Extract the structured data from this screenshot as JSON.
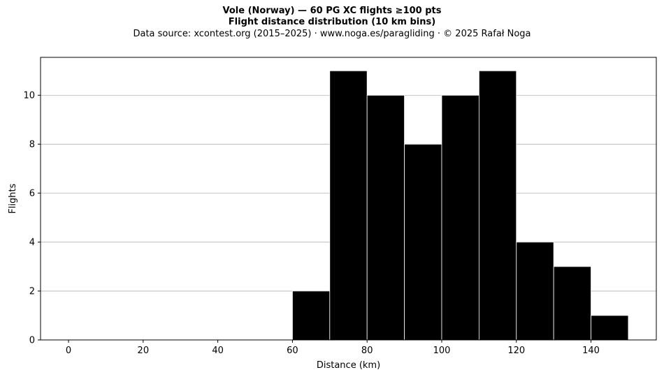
{
  "header": {
    "title": "Vole (Norway)  —  60 PG XC flights ≥100 pts",
    "subtitle": "Flight distance distribution (10 km bins)",
    "source": "Data source: xcontest.org (2015–2025)  ·  www.noga.es/paragliding  ·  © 2025 Rafał Noga"
  },
  "chart_data": {
    "type": "bar",
    "title": "Vole (Norway)  —  60 PG XC flights ≥100 pts",
    "subtitle": "Flight distance distribution (10 km bins)",
    "xlabel": "Distance (km)",
    "ylabel": "Flights",
    "bin_width": 10,
    "bins": [
      {
        "start": 60,
        "end": 70,
        "count": 2
      },
      {
        "start": 70,
        "end": 80,
        "count": 11
      },
      {
        "start": 80,
        "end": 90,
        "count": 10
      },
      {
        "start": 90,
        "end": 100,
        "count": 8
      },
      {
        "start": 100,
        "end": 110,
        "count": 10
      },
      {
        "start": 110,
        "end": 120,
        "count": 11
      },
      {
        "start": 120,
        "end": 130,
        "count": 4
      },
      {
        "start": 130,
        "end": 140,
        "count": 3
      },
      {
        "start": 140,
        "end": 150,
        "count": 1
      }
    ],
    "xlim": [
      -7.5,
      157.5
    ],
    "ylim": [
      0,
      11.55
    ],
    "xticks": [
      0,
      20,
      40,
      60,
      80,
      100,
      120,
      140
    ],
    "yticks": [
      0,
      2,
      4,
      6,
      8,
      10
    ],
    "grid": "horizontal",
    "bar_color": "#000000",
    "edge_color": "#ffffff",
    "grid_color": "#b0b0b0"
  }
}
